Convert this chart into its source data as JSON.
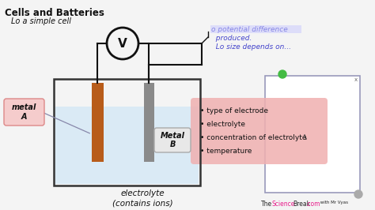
{
  "bg_color": "#e8e8e8",
  "title": "Cells and Batteries",
  "subtitle": "Lo a simple cell",
  "annot_line1": "o potential difference",
  "annot_line2": "  produced.",
  "annot_line3": "  Lo size depends on...",
  "bullet_points": [
    "type of electrode",
    "electrolyte",
    "concentration of electrolyte",
    "temperature"
  ],
  "label_metal_a": "metal\nA",
  "label_metal_b": "Metal\nB",
  "label_electrolyte_line1": "electrolyte",
  "label_electrolyte_line2": "(contains ions)",
  "label_voltmeter": "V",
  "watercolor": "#daeaf5",
  "electrode_a_color": "#b85c1a",
  "electrode_b_color": "#8a8a8a",
  "beaker_color": "#333333",
  "wire_color": "#111111",
  "border_color": "#9999bb",
  "bullet_bg": "#f0b0b0",
  "text_black": "#111111",
  "text_blue": "#4444cc",
  "text_pink_label": "#cc2255",
  "brand_pink": "#e91e8c",
  "brand_black": "#222222",
  "green_dot": "#44bb44",
  "gray_dot": "#aaaaaa"
}
